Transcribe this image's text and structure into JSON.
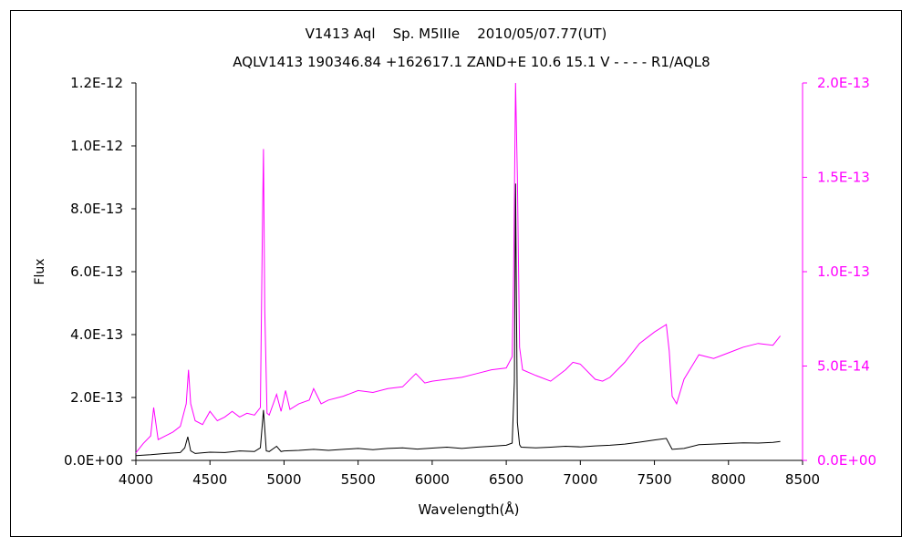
{
  "chart_data": {
    "type": "line",
    "title": "V1413 Aql    Sp. M5IIIe    2010/05/07.77(UT)",
    "subtitle": "AQLV1413 190346.84 +162617.1 ZAND+E 10.6 15.1 V - - - - R1/AQL8",
    "xlabel": "Wavelength(Å)",
    "ylabel": "Flux",
    "xlim": [
      4000,
      8500
    ],
    "ylim": [
      0,
      1.2e-12
    ],
    "y2lim": [
      0,
      2e-13
    ],
    "x_ticks": [
      "4000",
      "4500",
      "5000",
      "5500",
      "6000",
      "6500",
      "7000",
      "7500",
      "8000",
      "8500"
    ],
    "y_ticks": [
      "0.0E+00",
      "2.0E-13",
      "4.0E-13",
      "6.0E-13",
      "8.0E-13",
      "1.0E-12",
      "1.2E-12"
    ],
    "y2_ticks": [
      "0.0E+00",
      "5.0E-14",
      "1.0E-13",
      "1.5E-13",
      "2.0E-13"
    ],
    "grid": false,
    "colors": {
      "primary": "#000000",
      "secondary": "#ff00ff"
    },
    "series": [
      {
        "axis": "left",
        "color": "#000000",
        "points": [
          [
            4000,
            1.5e-14
          ],
          [
            4100,
            1.8e-14
          ],
          [
            4200,
            2.2e-14
          ],
          [
            4300,
            2.5e-14
          ],
          [
            4330,
            4e-14
          ],
          [
            4350,
            7.5e-14
          ],
          [
            4370,
            3e-14
          ],
          [
            4400,
            2.2e-14
          ],
          [
            4500,
            2.6e-14
          ],
          [
            4600,
            2.5e-14
          ],
          [
            4700,
            3e-14
          ],
          [
            4800,
            2.8e-14
          ],
          [
            4840,
            4e-14
          ],
          [
            4861,
            1.6e-13
          ],
          [
            4880,
            3e-14
          ],
          [
            4900,
            2.8e-14
          ],
          [
            4950,
            4.5e-14
          ],
          [
            4980,
            2.8e-14
          ],
          [
            5000,
            3e-14
          ],
          [
            5100,
            3.2e-14
          ],
          [
            5200,
            3.5e-14
          ],
          [
            5300,
            3.2e-14
          ],
          [
            5400,
            3.5e-14
          ],
          [
            5500,
            3.8e-14
          ],
          [
            5600,
            3.4e-14
          ],
          [
            5700,
            3.8e-14
          ],
          [
            5800,
            4e-14
          ],
          [
            5900,
            3.6e-14
          ],
          [
            6000,
            3.9e-14
          ],
          [
            6100,
            4.2e-14
          ],
          [
            6200,
            3.8e-14
          ],
          [
            6300,
            4.2e-14
          ],
          [
            6400,
            4.5e-14
          ],
          [
            6500,
            4.8e-14
          ],
          [
            6540,
            5.5e-14
          ],
          [
            6555,
            2.5e-13
          ],
          [
            6563,
            8.8e-13
          ],
          [
            6575,
            1.2e-13
          ],
          [
            6590,
            5e-14
          ],
          [
            6600,
            4.2e-14
          ],
          [
            6700,
            4e-14
          ],
          [
            6800,
            4.2e-14
          ],
          [
            6900,
            4.5e-14
          ],
          [
            7000,
            4.3e-14
          ],
          [
            7100,
            4.6e-14
          ],
          [
            7200,
            4.8e-14
          ],
          [
            7300,
            5.2e-14
          ],
          [
            7400,
            5.8e-14
          ],
          [
            7500,
            6.5e-14
          ],
          [
            7580,
            7e-14
          ],
          [
            7620,
            3.5e-14
          ],
          [
            7700,
            3.8e-14
          ],
          [
            7800,
            5e-14
          ],
          [
            7900,
            5.2e-14
          ],
          [
            8000,
            5.4e-14
          ],
          [
            8100,
            5.6e-14
          ],
          [
            8200,
            5.5e-14
          ],
          [
            8300,
            5.7e-14
          ],
          [
            8350,
            6e-14
          ]
        ]
      },
      {
        "axis": "right",
        "color": "#ff00ff",
        "points": [
          [
            4000,
            4e-15
          ],
          [
            4050,
            9e-15
          ],
          [
            4100,
            1.3e-14
          ],
          [
            4120,
            2.8e-14
          ],
          [
            4150,
            1.1e-14
          ],
          [
            4200,
            1.3e-14
          ],
          [
            4250,
            1.5e-14
          ],
          [
            4300,
            1.8e-14
          ],
          [
            4340,
            3e-14
          ],
          [
            4355,
            4.8e-14
          ],
          [
            4370,
            3e-14
          ],
          [
            4400,
            2.1e-14
          ],
          [
            4450,
            1.9e-14
          ],
          [
            4500,
            2.6e-14
          ],
          [
            4550,
            2.1e-14
          ],
          [
            4600,
            2.3e-14
          ],
          [
            4650,
            2.6e-14
          ],
          [
            4700,
            2.3e-14
          ],
          [
            4750,
            2.5e-14
          ],
          [
            4800,
            2.4e-14
          ],
          [
            4840,
            2.8e-14
          ],
          [
            4855,
            1.3e-13
          ],
          [
            4861,
            1.65e-13
          ],
          [
            4870,
            8e-14
          ],
          [
            4885,
            2.5e-14
          ],
          [
            4900,
            2.4e-14
          ],
          [
            4950,
            3.5e-14
          ],
          [
            4980,
            2.6e-14
          ],
          [
            5010,
            3.7e-14
          ],
          [
            5040,
            2.7e-14
          ],
          [
            5100,
            3e-14
          ],
          [
            5170,
            3.2e-14
          ],
          [
            5200,
            3.8e-14
          ],
          [
            5250,
            3e-14
          ],
          [
            5300,
            3.2e-14
          ],
          [
            5400,
            3.4e-14
          ],
          [
            5500,
            3.7e-14
          ],
          [
            5600,
            3.6e-14
          ],
          [
            5700,
            3.8e-14
          ],
          [
            5800,
            3.9e-14
          ],
          [
            5890,
            4.6e-14
          ],
          [
            5950,
            4.1e-14
          ],
          [
            6000,
            4.2e-14
          ],
          [
            6100,
            4.3e-14
          ],
          [
            6200,
            4.4e-14
          ],
          [
            6300,
            4.6e-14
          ],
          [
            6400,
            4.8e-14
          ],
          [
            6500,
            4.9e-14
          ],
          [
            6540,
            5.5e-14
          ],
          [
            6550,
            1e-13
          ],
          [
            6563,
            2e-13
          ],
          [
            6575,
            1.5e-13
          ],
          [
            6590,
            6e-14
          ],
          [
            6610,
            4.8e-14
          ],
          [
            6700,
            4.5e-14
          ],
          [
            6800,
            4.2e-14
          ],
          [
            6900,
            4.8e-14
          ],
          [
            6950,
            5.2e-14
          ],
          [
            7000,
            5.1e-14
          ],
          [
            7100,
            4.3e-14
          ],
          [
            7150,
            4.2e-14
          ],
          [
            7200,
            4.4e-14
          ],
          [
            7300,
            5.2e-14
          ],
          [
            7400,
            6.2e-14
          ],
          [
            7500,
            6.8e-14
          ],
          [
            7580,
            7.2e-14
          ],
          [
            7600,
            5.8e-14
          ],
          [
            7620,
            3.4e-14
          ],
          [
            7650,
            3e-14
          ],
          [
            7700,
            4.3e-14
          ],
          [
            7800,
            5.6e-14
          ],
          [
            7900,
            5.4e-14
          ],
          [
            8000,
            5.7e-14
          ],
          [
            8100,
            6e-14
          ],
          [
            8200,
            6.2e-14
          ],
          [
            8300,
            6.1e-14
          ],
          [
            8350,
            6.6e-14
          ]
        ]
      }
    ]
  }
}
